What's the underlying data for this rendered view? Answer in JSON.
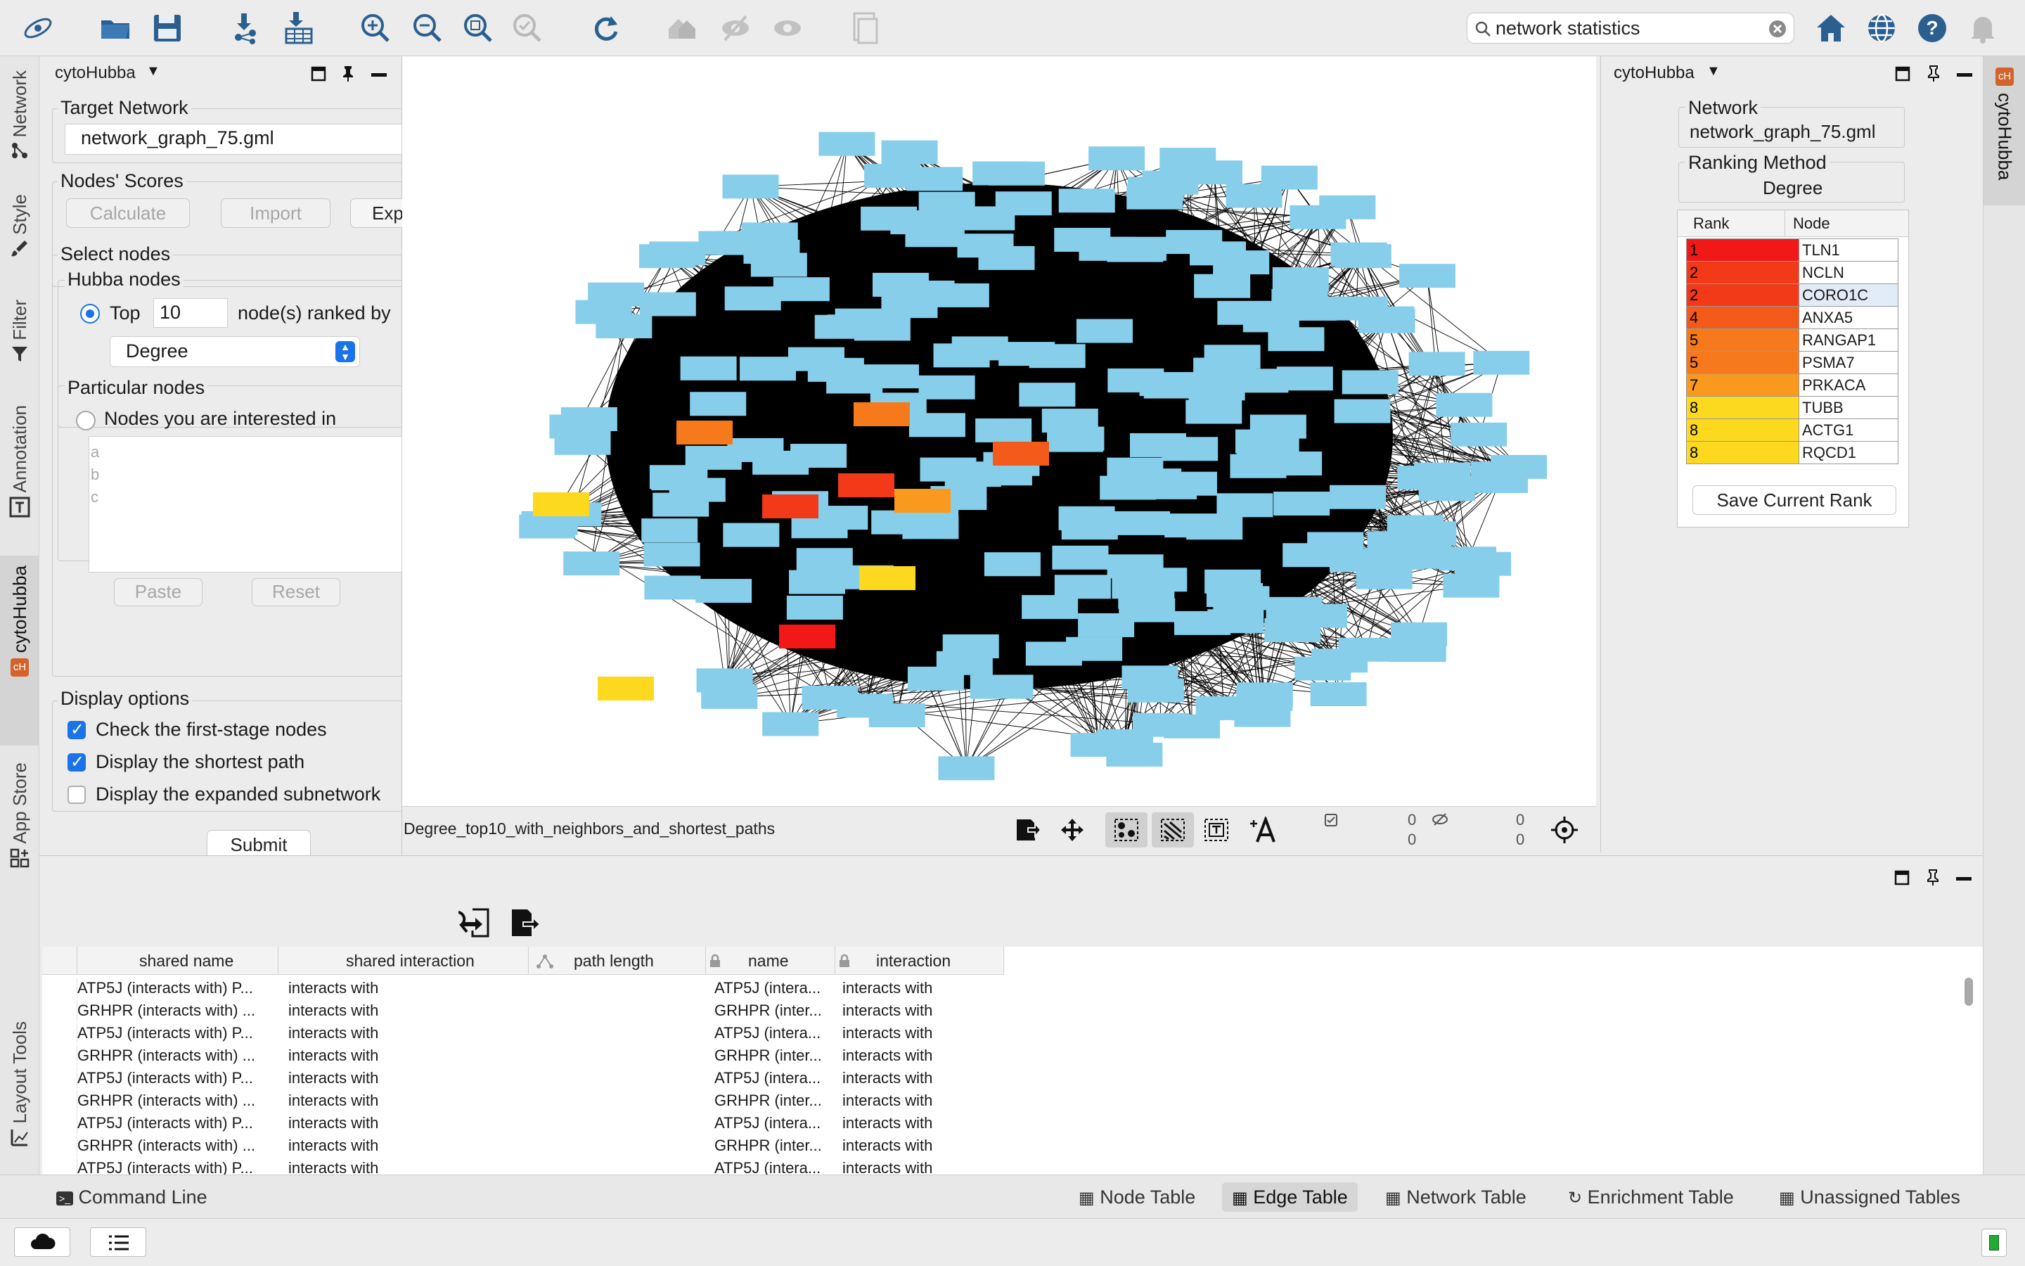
{
  "toolbar": {
    "search_value": "network statistics"
  },
  "left_rail": {
    "tabs": [
      "Network",
      "Style",
      "Filter",
      "Annotation",
      "cytoHubba",
      "App Store",
      "Layout Tools"
    ]
  },
  "right_rail": {
    "tab": "cytoHubba"
  },
  "left_panel": {
    "title": "cytoHubba",
    "target_network_label": "Target Network",
    "target_network_value": "network_graph_75.gml",
    "nodes_scores_label": "Nodes' Scores",
    "calculate_label": "Calculate",
    "import_label": "Import",
    "export_label": "Exp",
    "select_nodes_label": "Select nodes",
    "hubba_nodes_label": "Hubba nodes",
    "top_label": "Top",
    "top_value": "10",
    "ranked_by_label": "node(s) ranked by",
    "method_value": "Degree",
    "particular_nodes_label": "Particular nodes",
    "interested_label": "Nodes you are interested in",
    "textarea_placeholder_lines": [
      "a",
      "b",
      "c"
    ],
    "paste_label": "Paste",
    "reset_label": "Reset",
    "display_options_label": "Display options",
    "opt_first_stage": "Check the first-stage nodes",
    "opt_shortest_path": "Display the shortest path",
    "opt_expanded": "Display the expanded subnetwork",
    "submit_label": "Submit"
  },
  "canvas": {
    "network_name": "Degree_top10_with_neighbors_and_shortest_paths",
    "selected_nodes": "0",
    "selected_edges": "0",
    "hidden_nodes": "0",
    "hidden_edges": "0"
  },
  "right_panel": {
    "title": "cytoHubba",
    "network_label": "Network",
    "network_value": "network_graph_75.gml",
    "ranking_method_label": "Ranking Method",
    "ranking_method_value": "Degree",
    "col_rank": "Rank",
    "col_node": "Node",
    "ranks": [
      {
        "rank": "1",
        "node": "TLN1",
        "color": "#f21818"
      },
      {
        "rank": "2",
        "node": "NCLN",
        "color": "#f23a18"
      },
      {
        "rank": "2",
        "node": "CORO1C",
        "color": "#f23a18"
      },
      {
        "rank": "4",
        "node": "ANXA5",
        "color": "#f45a1a"
      },
      {
        "rank": "5",
        "node": "RANGAP1",
        "color": "#f67a1c"
      },
      {
        "rank": "5",
        "node": "PSMA7",
        "color": "#f67a1c"
      },
      {
        "rank": "7",
        "node": "PRKACA",
        "color": "#f99a1e"
      },
      {
        "rank": "8",
        "node": "TUBB",
        "color": "#fcd81f"
      },
      {
        "rank": "8",
        "node": "ACTG1",
        "color": "#fcd81f"
      },
      {
        "rank": "8",
        "node": "RQCD1",
        "color": "#fcd81f"
      }
    ],
    "save_label": "Save Current Rank"
  },
  "edge_table": {
    "columns": [
      "shared name",
      "shared interaction",
      "path length",
      "name",
      "interaction"
    ],
    "rows": [
      [
        "ATP5J (interacts with) P...",
        "interacts with",
        "",
        "ATP5J (intera...",
        "interacts with"
      ],
      [
        "GRHPR (interacts with) ...",
        "interacts with",
        "",
        "GRHPR (inter...",
        "interacts with"
      ],
      [
        "ATP5J (interacts with) P...",
        "interacts with",
        "",
        "ATP5J (intera...",
        "interacts with"
      ],
      [
        "GRHPR (interacts with) ...",
        "interacts with",
        "",
        "GRHPR (inter...",
        "interacts with"
      ],
      [
        "ATP5J (interacts with) P...",
        "interacts with",
        "",
        "ATP5J (intera...",
        "interacts with"
      ],
      [
        "GRHPR (interacts with) ...",
        "interacts with",
        "",
        "GRHPR (inter...",
        "interacts with"
      ],
      [
        "ATP5J (interacts with) P...",
        "interacts with",
        "",
        "ATP5J (intera...",
        "interacts with"
      ],
      [
        "GRHPR (interacts with) ...",
        "interacts with",
        "",
        "GRHPR (inter...",
        "interacts with"
      ],
      [
        "ATP5J (interacts with) P...",
        "interacts with",
        "",
        "ATP5J (intera...",
        "interacts with"
      ]
    ]
  },
  "bottom_tabs": {
    "command_line": "Command Line",
    "node_table": "Node Table",
    "edge_table": "Edge Table",
    "network_table": "Network Table",
    "enrichment_table": "Enrichment Table",
    "unassigned_tables": "Unassigned Tables"
  },
  "colors": {
    "node_default": "#87ceeb",
    "accent": "#1a73e8",
    "edge": "#000000"
  }
}
